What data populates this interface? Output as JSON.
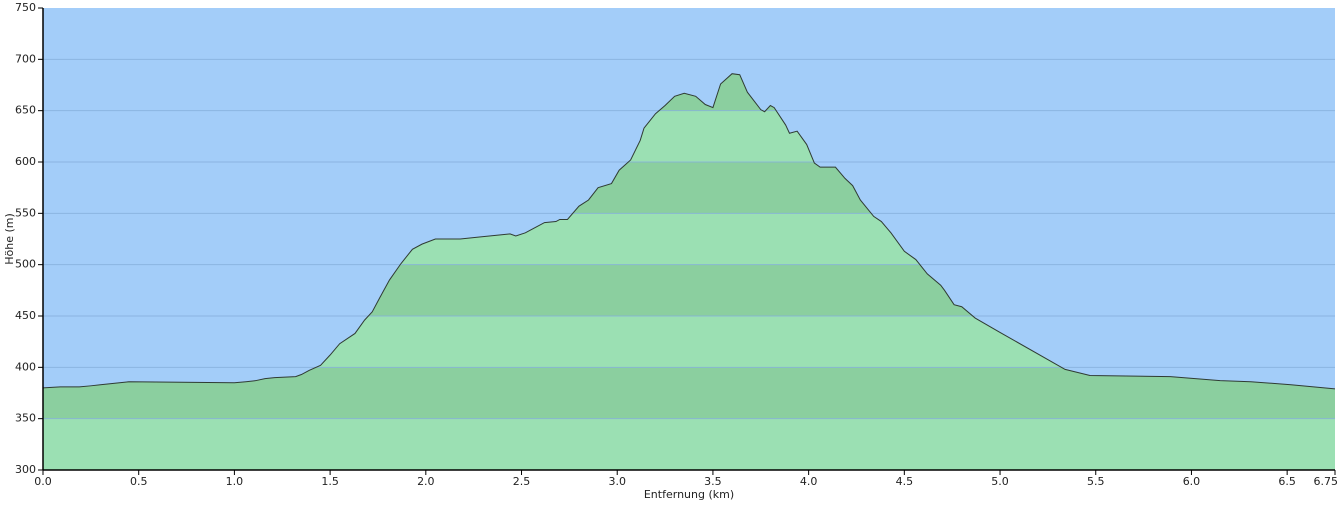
{
  "chart_data": {
    "type": "area",
    "xlabel": "Entfernung (km)",
    "ylabel": "Höhe (m)",
    "x": [
      0,
      0.09,
      0.19,
      0.25,
      0.3,
      0.4,
      0.45,
      1.0,
      1.06,
      1.11,
      1.16,
      1.21,
      1.32,
      1.35,
      1.39,
      1.45,
      1.5,
      1.55,
      1.63,
      1.68,
      1.72,
      1.76,
      1.81,
      1.87,
      1.93,
      1.98,
      2.05,
      2.18,
      2.23,
      2.28,
      2.39,
      2.44,
      2.47,
      2.52,
      2.57,
      2.62,
      2.68,
      2.7,
      2.74,
      2.8,
      2.85,
      2.9,
      2.97,
      3.01,
      3.07,
      3.12,
      3.14,
      3.2,
      3.25,
      3.3,
      3.35,
      3.41,
      3.46,
      3.5,
      3.54,
      3.6,
      3.64,
      3.68,
      3.75,
      3.77,
      3.8,
      3.82,
      3.88,
      3.9,
      3.94,
      3.99,
      4.03,
      4.06,
      4.14,
      4.19,
      4.23,
      4.27,
      4.34,
      4.38,
      4.43,
      4.5,
      4.56,
      4.62,
      4.69,
      4.71,
      4.76,
      4.8,
      4.87,
      5.0,
      5.34,
      5.47,
      5.89,
      6.15,
      6.31,
      6.52,
      6.75
    ],
    "values": [
      380,
      381,
      381,
      382,
      383,
      385,
      386,
      385,
      386,
      387,
      389,
      390,
      391,
      393,
      397,
      402,
      412,
      423,
      433,
      446,
      454,
      468,
      485,
      501,
      515,
      520,
      525,
      525,
      526,
      527,
      529,
      530,
      528,
      531,
      536,
      541,
      542,
      544,
      544,
      557,
      563,
      575,
      579,
      592,
      602,
      621,
      633,
      647,
      655,
      664,
      667,
      664,
      656,
      653,
      676,
      686,
      685,
      668,
      651,
      649,
      655,
      653,
      636,
      628,
      630,
      617,
      599,
      595,
      595,
      584,
      577,
      563,
      547,
      542,
      531,
      513,
      505,
      491,
      480,
      475,
      461,
      459,
      448,
      434,
      398,
      392,
      391,
      387,
      386,
      383,
      379
    ],
    "xlim": [
      0,
      6.75
    ],
    "xticks": [
      {
        "value": 0,
        "label": "0.0"
      },
      0.5,
      {
        "value": 1,
        "label": "1.0"
      },
      1.5,
      {
        "value": 2,
        "label": "2.0"
      },
      2.5,
      {
        "value": 3,
        "label": "3.0"
      },
      3.5,
      {
        "value": 4,
        "label": "4.0"
      },
      4.5,
      {
        "value": 5,
        "label": "5.0"
      },
      5.5,
      {
        "value": 6,
        "label": "6.0"
      },
      6.5,
      6.75
    ],
    "ylim": [
      300,
      750
    ],
    "yticks": [
      300,
      350,
      400,
      450,
      500,
      550,
      600,
      650,
      700,
      750
    ],
    "grid": true,
    "background_color": "#a3cdf9",
    "color": "#9be0b3",
    "band_color": "#8bcf9f",
    "line_color": "#2f3b33",
    "grid_color": "#86afdc"
  }
}
